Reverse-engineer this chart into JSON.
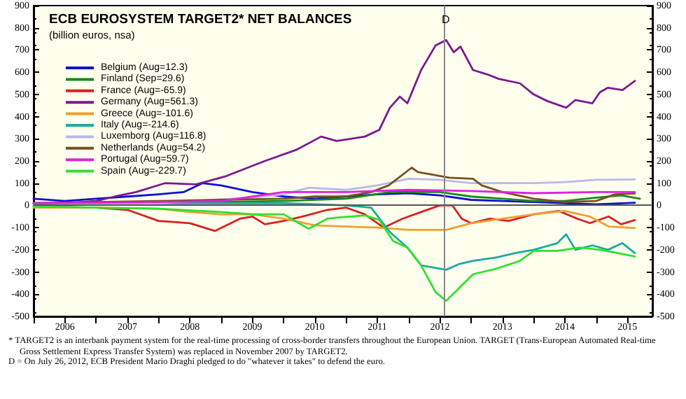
{
  "chart_data": {
    "type": "line",
    "title": "ECB EUROSYSTEM TARGET2* NET BALANCES",
    "subtitle": "(billion euros, nsa)",
    "xlim": [
      2006,
      2015.9
    ],
    "xticks": [
      {
        "value": 2006,
        "label": null
      },
      {
        "value": 2006.5,
        "label": "2006"
      },
      {
        "value": 2007,
        "label": null
      },
      {
        "value": 2007.5,
        "label": "2007"
      },
      {
        "value": 2008,
        "label": null
      },
      {
        "value": 2008.5,
        "label": "2008"
      },
      {
        "value": 2009,
        "label": null
      },
      {
        "value": 2009.5,
        "label": "2009"
      },
      {
        "value": 2010,
        "label": null
      },
      {
        "value": 2010.5,
        "label": "2010"
      },
      {
        "value": 2011,
        "label": null
      },
      {
        "value": 2011.5,
        "label": "2011"
      },
      {
        "value": 2012,
        "label": null
      },
      {
        "value": 2012.5,
        "label": "2012"
      },
      {
        "value": 2013,
        "label": null
      },
      {
        "value": 2013.5,
        "label": "2013"
      },
      {
        "value": 2014,
        "label": null
      },
      {
        "value": 2014.5,
        "label": "2014"
      },
      {
        "value": 2015,
        "label": null
      },
      {
        "value": 2015.5,
        "label": "2015"
      }
    ],
    "ylim": [
      -500,
      900
    ],
    "yticks": [
      -500,
      -400,
      -300,
      -200,
      -100,
      0,
      100,
      200,
      300,
      400,
      500,
      600,
      700,
      800,
      900
    ],
    "y2lim": [
      -500,
      900
    ],
    "y2ticks": [
      -500,
      -400,
      -300,
      -200,
      -100,
      0,
      100,
      200,
      300,
      400,
      500,
      600,
      700,
      800,
      900
    ],
    "legend": "top left",
    "grid": false,
    "ref_lines": [
      {
        "axis": "x",
        "value": 2012.57,
        "label": "D"
      },
      {
        "axis": "y",
        "value": 0,
        "label": null
      }
    ],
    "annotations": [
      "* TARGET2 is an interbank payment system for the real-time processing of cross-border transfers throughout the European Union. TARGET (Trans-European Automated Real-time Gross Settlement Express Transfer System) was replaced in November 2007 by TARGET2.",
      "D = On July 26, 2012, ECB President Mario Draghi pledged to do \"whatever it takes\" to defend the euro."
    ],
    "series": [
      {
        "name": "Belgium (Aug=12.3)",
        "color": "#1010d0",
        "x": [
          2006,
          2006.5,
          2007,
          2007.5,
          2008,
          2008.4,
          2008.7,
          2009,
          2009.5,
          2010,
          2010.5,
          2011,
          2011.5,
          2012,
          2012.5,
          2013,
          2013.5,
          2014,
          2014.5,
          2015,
          2015.62
        ],
        "values": [
          30,
          20,
          30,
          40,
          50,
          60,
          100,
          90,
          60,
          40,
          30,
          40,
          50,
          55,
          45,
          25,
          20,
          15,
          10,
          5,
          12
        ]
      },
      {
        "name": "Finland (Sep=29.6)",
        "color": "#1a8a1a",
        "x": [
          2006,
          2007,
          2008,
          2009,
          2010,
          2011,
          2011.7,
          2012.5,
          2013,
          2013.5,
          2014,
          2014.5,
          2015,
          2015.4,
          2015.7
        ],
        "values": [
          10,
          10,
          12,
          15,
          20,
          30,
          60,
          60,
          40,
          30,
          20,
          20,
          35,
          45,
          30
        ]
      },
      {
        "name": "France (Aug=-65.9)",
        "color": "#d82020",
        "x": [
          2006,
          2007,
          2007.5,
          2008,
          2008.5,
          2008.9,
          2009.3,
          2009.5,
          2009.7,
          2010,
          2010.3,
          2010.7,
          2011,
          2011.3,
          2011.6,
          2011.9,
          2012.2,
          2012.5,
          2012.7,
          2012.85,
          2013,
          2013.3,
          2013.6,
          2014,
          2014.4,
          2014.7,
          2014.9,
          2015.2,
          2015.4,
          2015.62
        ],
        "values": [
          -5,
          -10,
          -20,
          -70,
          -80,
          -115,
          -60,
          -50,
          -85,
          -70,
          -50,
          -20,
          -10,
          -40,
          -100,
          -60,
          -30,
          0,
          0,
          -60,
          -80,
          -60,
          -70,
          -40,
          -25,
          -60,
          -80,
          -50,
          -85,
          -66
        ]
      },
      {
        "name": "Germany (Aug=561.3)",
        "color": "#7a1a8e",
        "x": [
          2006,
          2006.5,
          2007,
          2007.3,
          2007.64,
          2008.1,
          2008.6,
          2009.06,
          2009.7,
          2010.2,
          2010.6,
          2010.85,
          2011.3,
          2011.53,
          2011.7,
          2011.86,
          2011.98,
          2012.2,
          2012.43,
          2012.6,
          2012.72,
          2012.83,
          2013.03,
          2013.26,
          2013.44,
          2013.78,
          2014,
          2014.22,
          2014.52,
          2014.67,
          2014.94,
          2015.06,
          2015.19,
          2015.42,
          2015.62
        ],
        "values": [
          5,
          10,
          20,
          40,
          60,
          100,
          95,
          130,
          200,
          250,
          310,
          290,
          310,
          340,
          440,
          490,
          460,
          610,
          720,
          745,
          690,
          715,
          610,
          590,
          570,
          550,
          500,
          470,
          440,
          475,
          460,
          510,
          530,
          520,
          561
        ]
      },
      {
        "name": "Greece (Aug=-101.6)",
        "color": "#f0a030",
        "x": [
          2006,
          2007,
          2008,
          2008.5,
          2009,
          2009.5,
          2010,
          2010.5,
          2011,
          2011.5,
          2012,
          2012.6,
          2013,
          2013.5,
          2014,
          2014.5,
          2014.9,
          2015.2,
          2015.62
        ],
        "values": [
          -10,
          -10,
          -15,
          -30,
          -40,
          -40,
          -60,
          -90,
          -95,
          -100,
          -110,
          -110,
          -80,
          -60,
          -40,
          -25,
          -50,
          -95,
          -102
        ]
      },
      {
        "name": "Italy (Aug=-214.6)",
        "color": "#20a8a0",
        "x": [
          2006,
          2007,
          2008,
          2009,
          2010,
          2011,
          2011.4,
          2011.7,
          2011.98,
          2012.2,
          2012.6,
          2012.8,
          2013.03,
          2013.4,
          2013.7,
          2014,
          2014.38,
          2014.52,
          2014.67,
          2014.94,
          2015.19,
          2015.42,
          2015.62
        ],
        "values": [
          5,
          5,
          10,
          10,
          10,
          0,
          -10,
          -120,
          -190,
          -270,
          -290,
          -265,
          -250,
          -235,
          -215,
          -200,
          -170,
          -130,
          -200,
          -180,
          -200,
          -170,
          -215
        ]
      },
      {
        "name": "Luxemborg (Aug=116.8)",
        "color": "#b8b8ec",
        "x": [
          2006,
          2007,
          2008,
          2009,
          2009.5,
          2010,
          2010.4,
          2011,
          2011.5,
          2012,
          2012.5,
          2013,
          2013.5,
          2014,
          2014.5,
          2015,
          2015.62
        ],
        "values": [
          5,
          5,
          10,
          28,
          35,
          50,
          80,
          70,
          90,
          120,
          115,
          100,
          100,
          100,
          105,
          115,
          117
        ]
      },
      {
        "name": "Netherlands (Aug=54.2)",
        "color": "#7a5020",
        "x": [
          2006,
          2007,
          2008,
          2009,
          2010,
          2010.5,
          2011,
          2011.4,
          2011.68,
          2012.05,
          2012.15,
          2012.36,
          2012.65,
          2013.03,
          2013.17,
          2013.5,
          2014,
          2014.5,
          2015,
          2015.3,
          2015.62
        ],
        "values": [
          10,
          15,
          20,
          25,
          30,
          40,
          40,
          60,
          90,
          170,
          150,
          140,
          125,
          120,
          90,
          60,
          30,
          15,
          20,
          50,
          54
        ]
      },
      {
        "name": "Portugal (Aug=59.7)",
        "color": "#e020e0",
        "x": [
          2006,
          2007,
          2008,
          2009,
          2010,
          2011,
          2012,
          2013,
          2014,
          2015,
          2015.62
        ],
        "values": [
          10,
          12,
          15,
          20,
          60,
          60,
          70,
          65,
          55,
          60,
          60
        ]
      },
      {
        "name": "Spain (Aug=-229.7)",
        "color": "#30e030",
        "x": [
          2006,
          2007,
          2008,
          2009,
          2009.5,
          2010,
          2010.4,
          2010.7,
          2010.85,
          2011.3,
          2011.53,
          2011.75,
          2011.98,
          2012.2,
          2012.43,
          2012.6,
          2012.8,
          2013.03,
          2013.4,
          2013.78,
          2014,
          2014.38,
          2014.74,
          2015.06,
          2015.35,
          2015.62
        ],
        "values": [
          -5,
          -10,
          -15,
          -30,
          -40,
          -40,
          -105,
          -60,
          -55,
          -45,
          -65,
          -160,
          -190,
          -270,
          -390,
          -430,
          -375,
          -310,
          -285,
          -250,
          -205,
          -205,
          -190,
          -200,
          -215,
          -230
        ]
      }
    ]
  }
}
